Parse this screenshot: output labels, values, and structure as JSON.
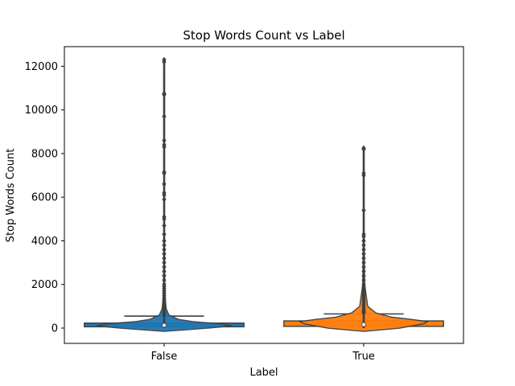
{
  "chart_data": {
    "type": "boxplot-violin",
    "title": "Stop Words Count vs Label",
    "xlabel": "Label",
    "ylabel": "Stop Words Count",
    "categories": [
      "False",
      "True"
    ],
    "ylim": [
      -700,
      12900
    ],
    "yticks": [
      0,
      2000,
      4000,
      6000,
      8000,
      10000,
      12000
    ],
    "ytick_labels": [
      "0",
      "2000",
      "4000",
      "6000",
      "8000",
      "10000",
      "12000"
    ],
    "grid": false,
    "series": [
      {
        "category": "False",
        "color": "#1f77b4",
        "box": {
          "min": 0,
          "q1": 60,
          "median": 130,
          "q3": 230,
          "max": 550
        },
        "outliers": [
          600,
          700,
          800,
          900,
          1000,
          1100,
          1200,
          1300,
          1400,
          1500,
          1600,
          1700,
          1800,
          1900,
          2000,
          2200,
          2400,
          2600,
          2800,
          3000,
          3200,
          3400,
          3600,
          3800,
          4000,
          4300,
          4700,
          5000,
          5100,
          5900,
          6100,
          6200,
          6600,
          7100,
          7150,
          8300,
          8400,
          8600,
          9700,
          10700,
          10750,
          12200,
          12300
        ],
        "density": [
          [
            -150,
            0.0
          ],
          [
            0,
            0.55
          ],
          [
            100,
            0.85
          ],
          [
            200,
            0.7
          ],
          [
            300,
            0.35
          ],
          [
            400,
            0.18
          ],
          [
            600,
            0.06
          ],
          [
            900,
            0.025
          ],
          [
            1500,
            0.01
          ],
          [
            3000,
            0.004
          ],
          [
            6000,
            0.002
          ],
          [
            12300,
            0.0
          ]
        ]
      },
      {
        "category": "True",
        "color": "#ff7f0e",
        "box": {
          "min": 0,
          "q1": 80,
          "median": 160,
          "q3": 330,
          "max": 650
        },
        "outliers": [
          700,
          750,
          800,
          900,
          1000,
          1100,
          1200,
          1300,
          1400,
          1500,
          1600,
          1700,
          1800,
          1900,
          2000,
          2200,
          2400,
          2600,
          2800,
          3000,
          3200,
          3400,
          3600,
          3800,
          4000,
          4200,
          4300,
          5400,
          7000,
          7100,
          8200,
          8250
        ],
        "density": [
          [
            -150,
            0.0
          ],
          [
            0,
            0.45
          ],
          [
            100,
            0.6
          ],
          [
            200,
            0.75
          ],
          [
            300,
            0.8
          ],
          [
            400,
            0.6
          ],
          [
            500,
            0.35
          ],
          [
            700,
            0.15
          ],
          [
            1000,
            0.05
          ],
          [
            2000,
            0.012
          ],
          [
            4000,
            0.004
          ],
          [
            8250,
            0.0
          ]
        ]
      }
    ]
  }
}
